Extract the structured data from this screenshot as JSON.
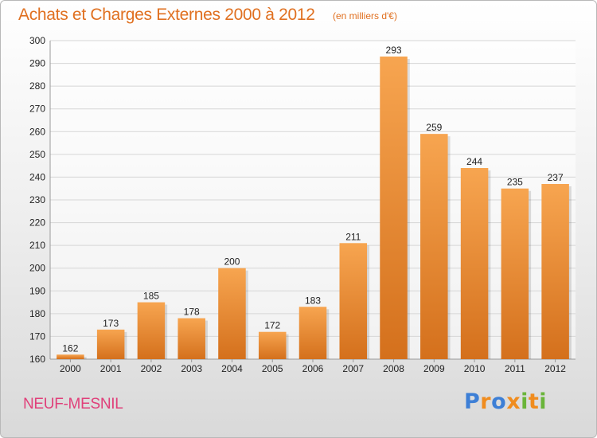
{
  "header": {
    "title": "Achats et Charges Externes 2000 à 2012",
    "subtitle": "(en milliers d'€)"
  },
  "footer": {
    "commune": "NEUF-MESNIL",
    "logo_text": "Proxiti",
    "logo_letters": [
      {
        "char": "P",
        "color": "#3d7fd6"
      },
      {
        "char": "r",
        "color": "#f08c1e"
      },
      {
        "char": "o",
        "color": "#3d7fd6"
      },
      {
        "char": "x",
        "color": "#f08c1e"
      },
      {
        "char": "i",
        "color": "#6ab53a"
      },
      {
        "char": "t",
        "color": "#f08c1e"
      },
      {
        "char": "i",
        "color": "#6ab53a"
      }
    ]
  },
  "colors": {
    "title": "#e07020",
    "commune": "#e0407a",
    "bar_top": "#f7a550",
    "bar_bottom": "#d4701c",
    "grid": "#d6d6d6"
  },
  "chart_data": {
    "type": "bar",
    "title": "Achats et Charges Externes 2000 à 2012",
    "subtitle": "(en milliers d'€)",
    "xlabel": "",
    "ylabel": "",
    "categories": [
      "2000",
      "2001",
      "2002",
      "2003",
      "2004",
      "2005",
      "2006",
      "2007",
      "2008",
      "2009",
      "2010",
      "2011",
      "2012"
    ],
    "values": [
      162,
      173,
      185,
      178,
      200,
      172,
      183,
      211,
      293,
      259,
      244,
      235,
      237
    ],
    "ylim": [
      160,
      300
    ],
    "yticks": [
      160,
      170,
      180,
      190,
      200,
      210,
      220,
      230,
      240,
      250,
      260,
      270,
      280,
      290,
      300
    ],
    "grid": true,
    "legend": "none"
  }
}
